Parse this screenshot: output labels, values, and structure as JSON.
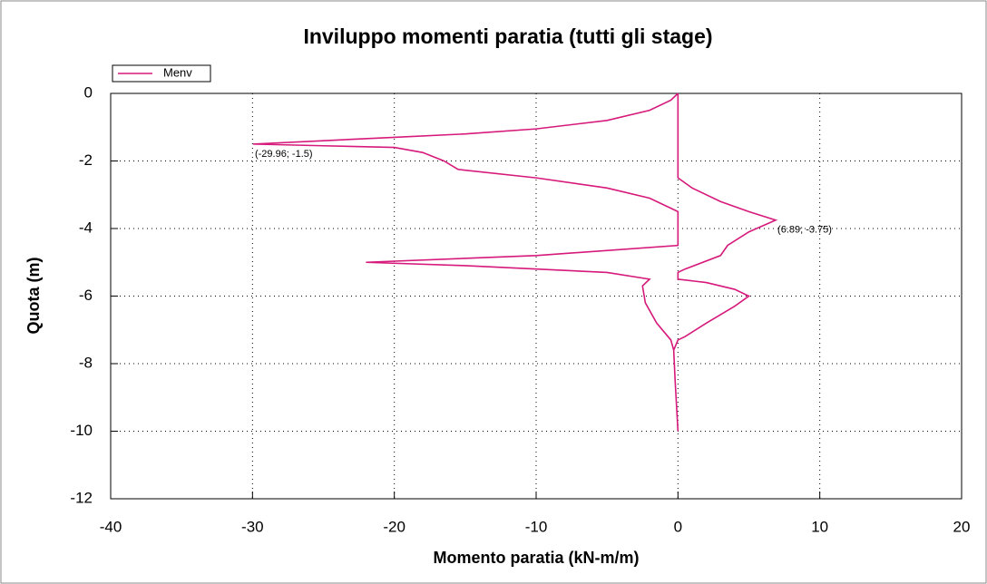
{
  "chart_data": {
    "type": "line",
    "title": "Inviluppo momenti paratia (tutti gli stage)",
    "x_label": "Momento paratia (kN-m/m)",
    "y_label": "Quota (m)",
    "x": [
      0,
      -0.5,
      -2,
      -5,
      -10,
      -15,
      -20,
      -25,
      -29.96,
      -25,
      -20,
      -18,
      -16.5,
      -15.5,
      -10,
      -5,
      -2,
      -0.5,
      0,
      0,
      -10,
      -22,
      -15,
      -5,
      -2,
      -2.5,
      -2.3,
      -1.5,
      -0.5,
      -0.3,
      -0.2,
      0,
      -0.2,
      -0.3,
      0,
      0.5,
      2,
      4,
      5,
      4,
      2,
      0,
      0,
      0.5,
      3,
      3.5,
      5,
      6.89,
      5,
      3,
      1,
      0,
      0
    ],
    "series": [
      {
        "name": "Menv",
        "color": "#d6197a",
        "values": [
          0,
          -0.2,
          -0.5,
          -0.8,
          -1.05,
          -1.2,
          -1.3,
          -1.4,
          -1.5,
          -1.55,
          -1.6,
          -1.75,
          -2.0,
          -2.25,
          -2.5,
          -2.8,
          -3.1,
          -3.4,
          -3.5,
          -4.5,
          -4.8,
          -5.0,
          -5.1,
          -5.3,
          -5.5,
          -5.7,
          -6.2,
          -6.8,
          -7.3,
          -7.6,
          -8.5,
          -10,
          -8.5,
          -7.6,
          -7.3,
          -7.2,
          -6.8,
          -6.3,
          -6.0,
          -5.8,
          -5.6,
          -5.5,
          -5.3,
          -5.2,
          -4.8,
          -4.5,
          -4.1,
          -3.75,
          -3.5,
          -3.2,
          -2.8,
          -2.5,
          0
        ]
      }
    ],
    "annotations": [
      "(-29.96; -1.5)",
      "(6.89; -3.75)"
    ],
    "xlim": [
      -40,
      20
    ],
    "xticks": [
      -40,
      -30,
      -20,
      -10,
      0,
      10,
      20
    ],
    "ylim": [
      -12,
      0
    ],
    "yticks": [
      -12,
      -10,
      -8,
      -6,
      -4,
      -2,
      0
    ],
    "grid": true,
    "legend": "top-left"
  }
}
